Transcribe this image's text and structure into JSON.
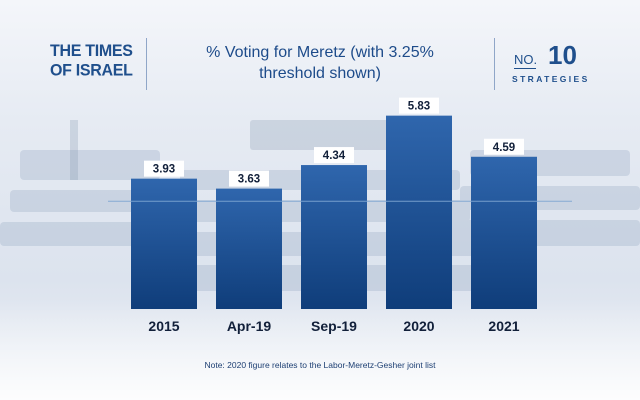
{
  "header": {
    "logo_left_line1": "THE TIMES",
    "logo_left_line2": "OF ISRAEL",
    "title_line1": "% Voting for Meretz (with 3.25%",
    "title_line2": "threshold shown)",
    "logo_right_no": "NO.",
    "logo_right_number": "10",
    "logo_right_word": "STRATEGIES"
  },
  "note": "Note: 2020 figure relates to the Labor-Meretz-Gesher joint list",
  "colors": {
    "brand": "#1f4f8c",
    "bar_top": "#2f66ad",
    "bar_bottom": "#0f3d7a",
    "threshold_line": "#7fa6d2",
    "label_box": "#ffffff"
  },
  "chart_data": {
    "type": "bar",
    "title": "% Voting for Meretz (with 3.25% threshold shown)",
    "categories": [
      "2015",
      "Apr-19",
      "Sep-19",
      "2020",
      "2021"
    ],
    "values": [
      3.93,
      3.63,
      4.34,
      5.83,
      4.59
    ],
    "data_labels": [
      "3.93",
      "3.63",
      "4.34",
      "5.83",
      "4.59"
    ],
    "threshold": 3.25,
    "xlabel": "",
    "ylabel": "",
    "ylim": [
      0,
      6
    ],
    "grid": false,
    "legend": "none"
  }
}
